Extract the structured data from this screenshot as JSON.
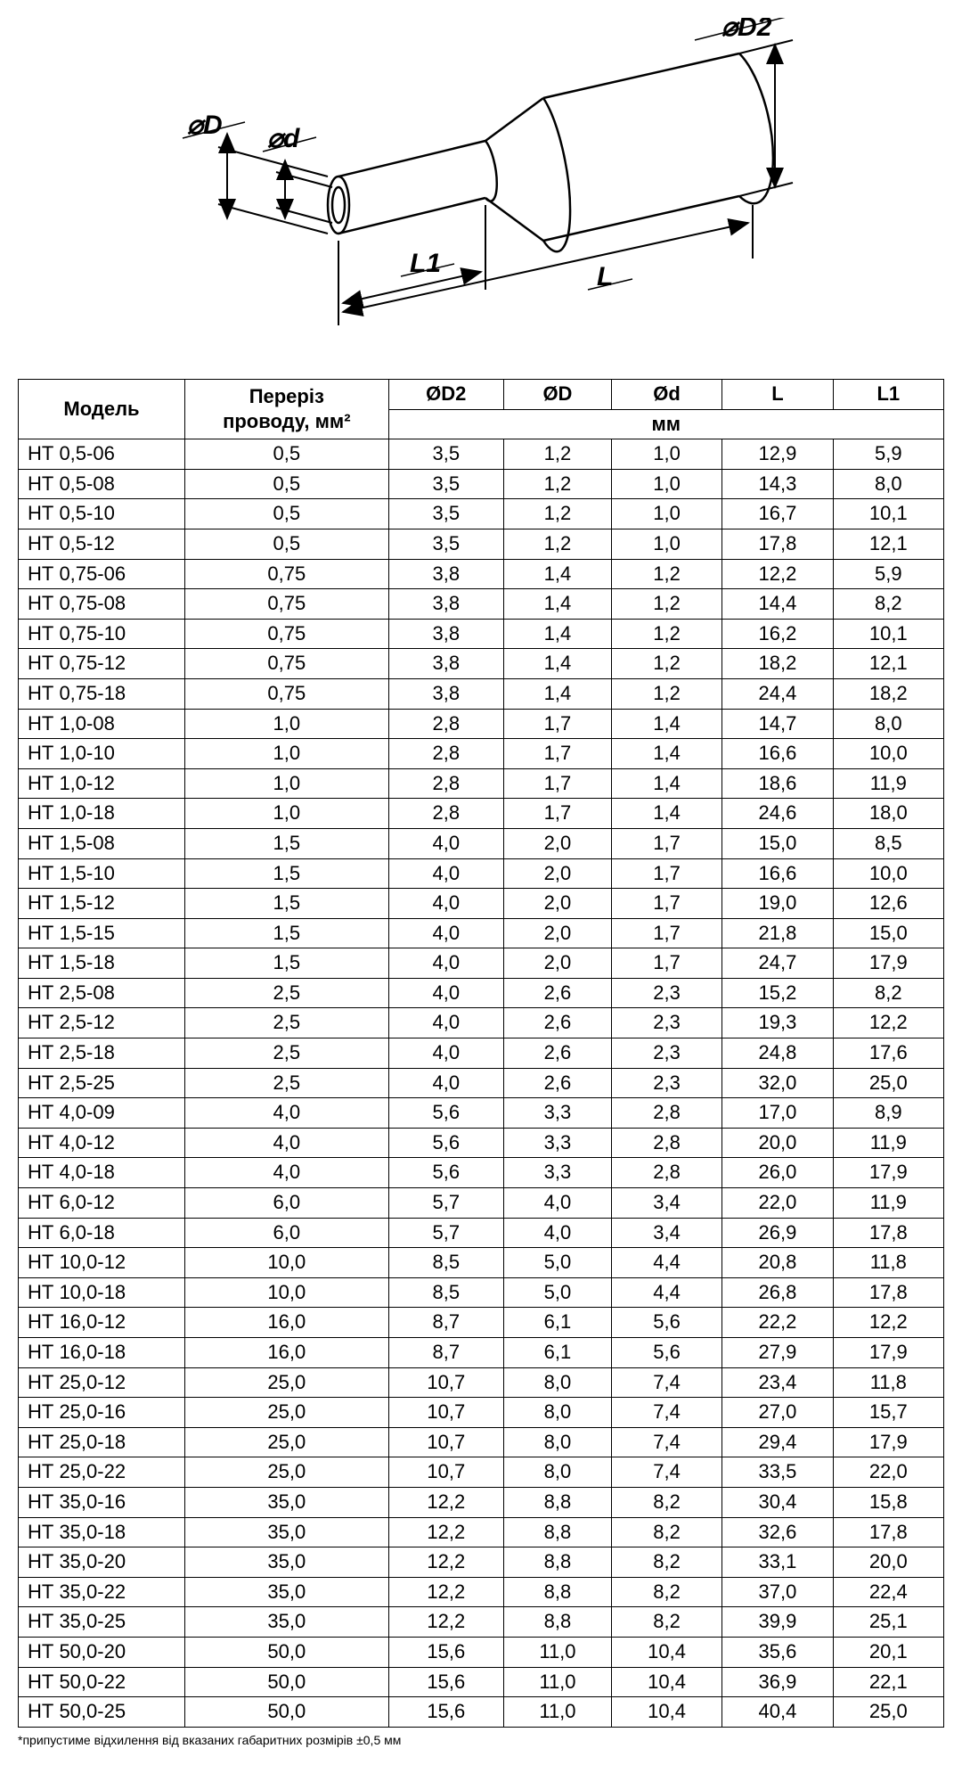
{
  "diagram": {
    "labels": {
      "D": "⌀D",
      "d": "⌀d",
      "D2": "⌀D2",
      "L": "L",
      "L1": "L1"
    },
    "stroke": "#000000",
    "fill": "#ffffff"
  },
  "table": {
    "headers": {
      "model": "Модель",
      "cross_section": "Переріз\nпроводу, мм²",
      "D2": "ØD2",
      "D": "ØD",
      "d": "Ød",
      "L": "L",
      "L1": "L1",
      "unit": "мм"
    },
    "rows": [
      [
        "НТ 0,5-06",
        "0,5",
        "3,5",
        "1,2",
        "1,0",
        "12,9",
        "5,9"
      ],
      [
        "НТ 0,5-08",
        "0,5",
        "3,5",
        "1,2",
        "1,0",
        "14,3",
        "8,0"
      ],
      [
        "НТ 0,5-10",
        "0,5",
        "3,5",
        "1,2",
        "1,0",
        "16,7",
        "10,1"
      ],
      [
        "НТ 0,5-12",
        "0,5",
        "3,5",
        "1,2",
        "1,0",
        "17,8",
        "12,1"
      ],
      [
        "НТ 0,75-06",
        "0,75",
        "3,8",
        "1,4",
        "1,2",
        "12,2",
        "5,9"
      ],
      [
        "НТ 0,75-08",
        "0,75",
        "3,8",
        "1,4",
        "1,2",
        "14,4",
        "8,2"
      ],
      [
        "НТ 0,75-10",
        "0,75",
        "3,8",
        "1,4",
        "1,2",
        "16,2",
        "10,1"
      ],
      [
        "НТ 0,75-12",
        "0,75",
        "3,8",
        "1,4",
        "1,2",
        "18,2",
        "12,1"
      ],
      [
        "НТ 0,75-18",
        "0,75",
        "3,8",
        "1,4",
        "1,2",
        "24,4",
        "18,2"
      ],
      [
        "НТ 1,0-08",
        "1,0",
        "2,8",
        "1,7",
        "1,4",
        "14,7",
        "8,0"
      ],
      [
        "НТ 1,0-10",
        "1,0",
        "2,8",
        "1,7",
        "1,4",
        "16,6",
        "10,0"
      ],
      [
        "НТ 1,0-12",
        "1,0",
        "2,8",
        "1,7",
        "1,4",
        "18,6",
        "11,9"
      ],
      [
        "НТ 1,0-18",
        "1,0",
        "2,8",
        "1,7",
        "1,4",
        "24,6",
        "18,0"
      ],
      [
        "НТ 1,5-08",
        "1,5",
        "4,0",
        "2,0",
        "1,7",
        "15,0",
        "8,5"
      ],
      [
        "НТ 1,5-10",
        "1,5",
        "4,0",
        "2,0",
        "1,7",
        "16,6",
        "10,0"
      ],
      [
        "НТ 1,5-12",
        "1,5",
        "4,0",
        "2,0",
        "1,7",
        "19,0",
        "12,6"
      ],
      [
        "НТ 1,5-15",
        "1,5",
        "4,0",
        "2,0",
        "1,7",
        "21,8",
        "15,0"
      ],
      [
        "НТ 1,5-18",
        "1,5",
        "4,0",
        "2,0",
        "1,7",
        "24,7",
        "17,9"
      ],
      [
        "НТ 2,5-08",
        "2,5",
        "4,0",
        "2,6",
        "2,3",
        "15,2",
        "8,2"
      ],
      [
        "НТ 2,5-12",
        "2,5",
        "4,0",
        "2,6",
        "2,3",
        "19,3",
        "12,2"
      ],
      [
        "НТ 2,5-18",
        "2,5",
        "4,0",
        "2,6",
        "2,3",
        "24,8",
        "17,6"
      ],
      [
        "НТ 2,5-25",
        "2,5",
        "4,0",
        "2,6",
        "2,3",
        "32,0",
        "25,0"
      ],
      [
        "НТ 4,0-09",
        "4,0",
        "5,6",
        "3,3",
        "2,8",
        "17,0",
        "8,9"
      ],
      [
        "НТ 4,0-12",
        "4,0",
        "5,6",
        "3,3",
        "2,8",
        "20,0",
        "11,9"
      ],
      [
        "НТ 4,0-18",
        "4,0",
        "5,6",
        "3,3",
        "2,8",
        "26,0",
        "17,9"
      ],
      [
        "НТ 6,0-12",
        "6,0",
        "5,7",
        "4,0",
        "3,4",
        "22,0",
        "11,9"
      ],
      [
        "НТ 6,0-18",
        "6,0",
        "5,7",
        "4,0",
        "3,4",
        "26,9",
        "17,8"
      ],
      [
        "НТ 10,0-12",
        "10,0",
        "8,5",
        "5,0",
        "4,4",
        "20,8",
        "11,8"
      ],
      [
        "НТ 10,0-18",
        "10,0",
        "8,5",
        "5,0",
        "4,4",
        "26,8",
        "17,8"
      ],
      [
        "НТ 16,0-12",
        "16,0",
        "8,7",
        "6,1",
        "5,6",
        "22,2",
        "12,2"
      ],
      [
        "НТ 16,0-18",
        "16,0",
        "8,7",
        "6,1",
        "5,6",
        "27,9",
        "17,9"
      ],
      [
        "НТ 25,0-12",
        "25,0",
        "10,7",
        "8,0",
        "7,4",
        "23,4",
        "11,8"
      ],
      [
        "НТ 25,0-16",
        "25,0",
        "10,7",
        "8,0",
        "7,4",
        "27,0",
        "15,7"
      ],
      [
        "НТ 25,0-18",
        "25,0",
        "10,7",
        "8,0",
        "7,4",
        "29,4",
        "17,9"
      ],
      [
        "НТ 25,0-22",
        "25,0",
        "10,7",
        "8,0",
        "7,4",
        "33,5",
        "22,0"
      ],
      [
        "НТ 35,0-16",
        "35,0",
        "12,2",
        "8,8",
        "8,2",
        "30,4",
        "15,8"
      ],
      [
        "НТ 35,0-18",
        "35,0",
        "12,2",
        "8,8",
        "8,2",
        "32,6",
        "17,8"
      ],
      [
        "НТ 35,0-20",
        "35,0",
        "12,2",
        "8,8",
        "8,2",
        "33,1",
        "20,0"
      ],
      [
        "НТ 35,0-22",
        "35,0",
        "12,2",
        "8,8",
        "8,2",
        "37,0",
        "22,4"
      ],
      [
        "НТ 35,0-25",
        "35,0",
        "12,2",
        "8,8",
        "8,2",
        "39,9",
        "25,1"
      ],
      [
        "НТ 50,0-20",
        "50,0",
        "15,6",
        "11,0",
        "10,4",
        "35,6",
        "20,1"
      ],
      [
        "НТ 50,0-22",
        "50,0",
        "15,6",
        "11,0",
        "10,4",
        "36,9",
        "22,1"
      ],
      [
        "НТ 50,0-25",
        "50,0",
        "15,6",
        "11,0",
        "10,4",
        "40,4",
        "25,0"
      ]
    ]
  },
  "footnote": "*припустиме відхилення від вказаних габаритних розмірів ±0,5 мм"
}
